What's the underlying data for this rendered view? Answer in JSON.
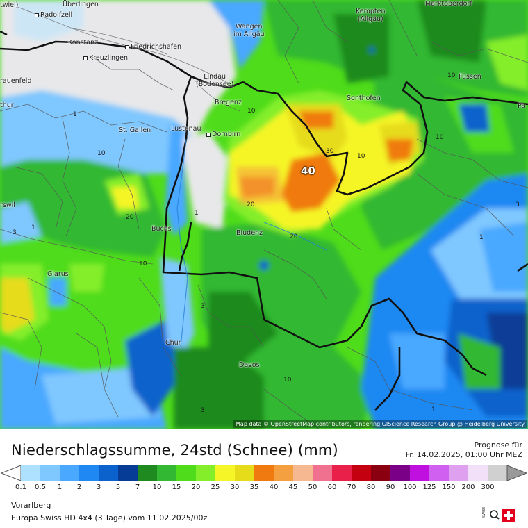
{
  "map": {
    "places": [
      {
        "id": "radolfzell",
        "name": "Radolfzell"
      },
      {
        "id": "ueberlingen",
        "name": "Überlingen"
      },
      {
        "id": "konstanz",
        "name": "Konstanz"
      },
      {
        "id": "kreuzlingen",
        "name": "Kreuzlingen"
      },
      {
        "id": "friedrichshafen",
        "name": "Friedrichshafen"
      },
      {
        "id": "wangen",
        "name": "Wangen\nim Allgäu"
      },
      {
        "id": "kempten",
        "name": "Kempten\n(Allgäu)"
      },
      {
        "id": "lindau",
        "name": "Lindau\n(Bodensee)"
      },
      {
        "id": "bregenz",
        "name": "Bregenz"
      },
      {
        "id": "sonthofen",
        "name": "Sonthofen"
      },
      {
        "id": "fuessen",
        "name": "Füssen"
      },
      {
        "id": "stgallen",
        "name": "St. Gallen"
      },
      {
        "id": "lustenau",
        "name": "Lustenau"
      },
      {
        "id": "dornbirn",
        "name": "Dornbirn"
      },
      {
        "id": "frauenfeld",
        "name": "rauenfeld"
      },
      {
        "id": "thur",
        "name": "thur"
      },
      {
        "id": "rswil",
        "name": "rswil"
      },
      {
        "id": "buchs",
        "name": "Buchs"
      },
      {
        "id": "bludenz",
        "name": "Bludenz"
      },
      {
        "id": "glarus",
        "name": "Glarus"
      },
      {
        "id": "chur",
        "name": "Chur"
      },
      {
        "id": "davos",
        "name": "Davos"
      },
      {
        "id": "marktoberdorf",
        "name": "Marktoberdorf"
      },
      {
        "id": "twiel",
        "name": "twiel)"
      },
      {
        "id": "pa",
        "name": "Pa"
      }
    ],
    "isoline_labels": [
      {
        "id": "l10a",
        "text": "10"
      },
      {
        "id": "l10b",
        "text": "10"
      },
      {
        "id": "l10c",
        "text": "10"
      },
      {
        "id": "l10d",
        "text": "10"
      },
      {
        "id": "l10e",
        "text": "10"
      },
      {
        "id": "l10f",
        "text": "10"
      },
      {
        "id": "l10g",
        "text": "10"
      },
      {
        "id": "l20a",
        "text": "20"
      },
      {
        "id": "l20b",
        "text": "20"
      },
      {
        "id": "l20c",
        "text": "20"
      },
      {
        "id": "l30",
        "text": "30"
      },
      {
        "id": "l40",
        "text": "40"
      },
      {
        "id": "l1a",
        "text": "1"
      },
      {
        "id": "l1b",
        "text": "1"
      },
      {
        "id": "l1c",
        "text": "1"
      },
      {
        "id": "l1d",
        "text": "1"
      },
      {
        "id": "l1e",
        "text": "1"
      },
      {
        "id": "l3a",
        "text": "3"
      },
      {
        "id": "l3b",
        "text": "3"
      },
      {
        "id": "l3c",
        "text": "3"
      },
      {
        "id": "l3d",
        "text": "3"
      }
    ],
    "attribution": "Map data © OpenStreetMap contributors, rendering GIScience Research Group @ Heidelberg University"
  },
  "legend": {
    "title": "Niederschlagssumme, 24std (Schnee) (mm)",
    "forecast_label": "Prognose für",
    "forecast_time": "Fr. 14.02.2025, 01:00 Uhr MEZ",
    "ticks": [
      "0.1",
      "0.5",
      "1",
      "2",
      "3",
      "5",
      "7",
      "10",
      "15",
      "20",
      "25",
      "30",
      "35",
      "40",
      "45",
      "50",
      "60",
      "70",
      "80",
      "90",
      "100",
      "125",
      "150",
      "200",
      "300"
    ],
    "colors": [
      "#aee0ff",
      "#7fc7ff",
      "#4aa8ff",
      "#1f88f2",
      "#0c62cc",
      "#073c96",
      "#1f8a1f",
      "#32b832",
      "#4fdc1a",
      "#84ee2a",
      "#f5f528",
      "#e6dc1a",
      "#f07a10",
      "#f5a040",
      "#f5b890",
      "#f07090",
      "#e8204a",
      "#c40010",
      "#8a0010",
      "#7a0088",
      "#bf10e0",
      "#d060f0",
      "#e0a0f0",
      "#f2e0f8",
      "#d0d0d0"
    ],
    "region": "Vorarlberg",
    "model_run": "Europa Swiss HD 4x4 (3 Tage) vom  11.02.2025/00z",
    "logo_text": "SWISS HD"
  }
}
